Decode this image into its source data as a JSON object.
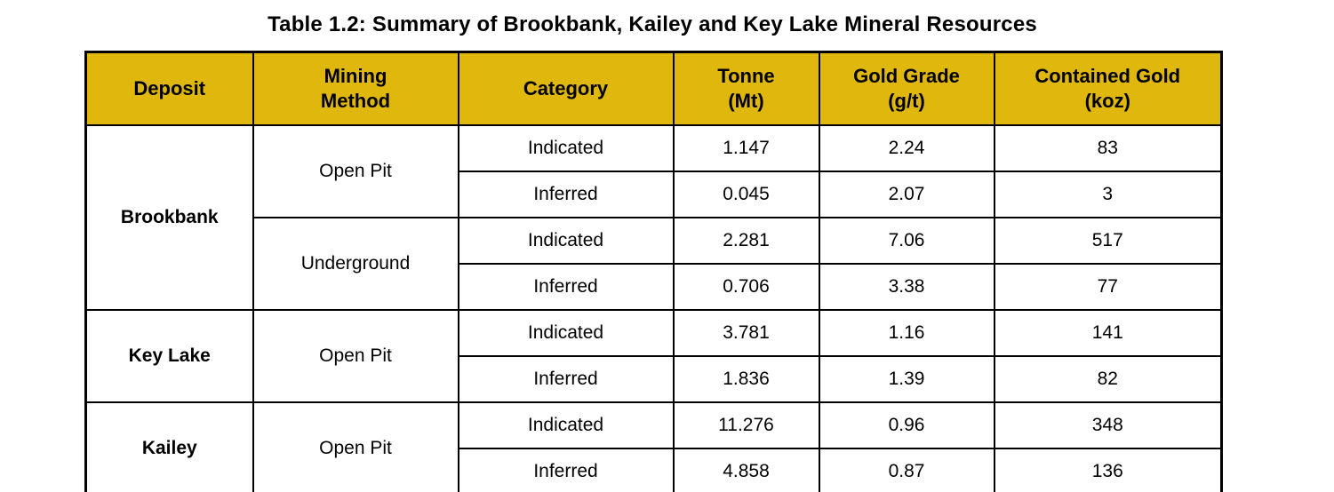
{
  "title": "Table 1.2: Summary of Brookbank, Kailey and Key Lake Mineral Resources",
  "table": {
    "header_bg_color": "#dfb70d",
    "border_color": "#000000",
    "headers": {
      "deposit": "Deposit",
      "mining_method": "Mining\nMethod",
      "category": "Category",
      "tonne": "Tonne\n(Mt)",
      "gold_grade": "Gold Grade\n(g/t)",
      "contained_gold": "Contained Gold\n(koz)"
    },
    "sections": [
      {
        "deposit": "Brookbank",
        "methods": [
          {
            "method": "Open Pit",
            "rows": [
              {
                "category": "Indicated",
                "tonne": "1.147",
                "grade": "2.24",
                "gold": "83"
              },
              {
                "category": "Inferred",
                "tonne": "0.045",
                "grade": "2.07",
                "gold": "3"
              }
            ]
          },
          {
            "method": "Underground",
            "rows": [
              {
                "category": "Indicated",
                "tonne": "2.281",
                "grade": "7.06",
                "gold": "517"
              },
              {
                "category": "Inferred",
                "tonne": "0.706",
                "grade": "3.38",
                "gold": "77"
              }
            ]
          }
        ]
      },
      {
        "deposit": "Key Lake",
        "methods": [
          {
            "method": "Open Pit",
            "rows": [
              {
                "category": "Indicated",
                "tonne": "3.781",
                "grade": "1.16",
                "gold": "141"
              },
              {
                "category": "Inferred",
                "tonne": "1.836",
                "grade": "1.39",
                "gold": "82"
              }
            ]
          }
        ]
      },
      {
        "deposit": "Kailey",
        "methods": [
          {
            "method": "Open Pit",
            "rows": [
              {
                "category": "Indicated",
                "tonne": "11.276",
                "grade": "0.96",
                "gold": "348"
              },
              {
                "category": "Inferred",
                "tonne": "4.858",
                "grade": "0.87",
                "gold": "136"
              }
            ]
          }
        ]
      }
    ]
  }
}
